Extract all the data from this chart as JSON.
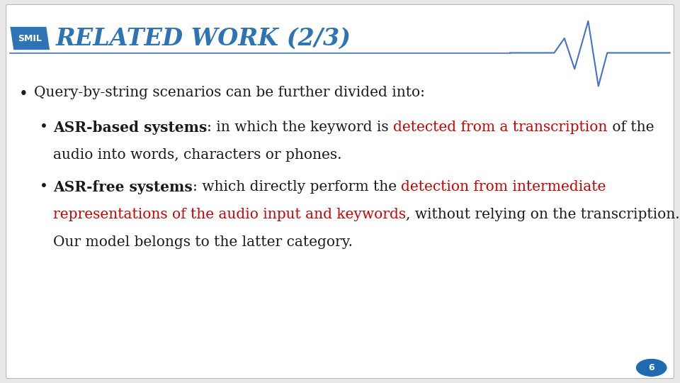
{
  "title": "RELATED WORK (2/3)",
  "smil_label": "SMIL",
  "title_color": "#2E74B5",
  "smil_bg_color": "#2E74B5",
  "line_color": "#4472C4",
  "background_color": "#E8E8E8",
  "slide_bg": "#FFFFFF",
  "page_number": "6",
  "page_circle_color": "#1F6BB0",
  "text_color": "#1A1A1A",
  "red_color": "#CC0000",
  "font_size_title": 24,
  "font_size_body": 14.5,
  "font_size_smil": 9
}
